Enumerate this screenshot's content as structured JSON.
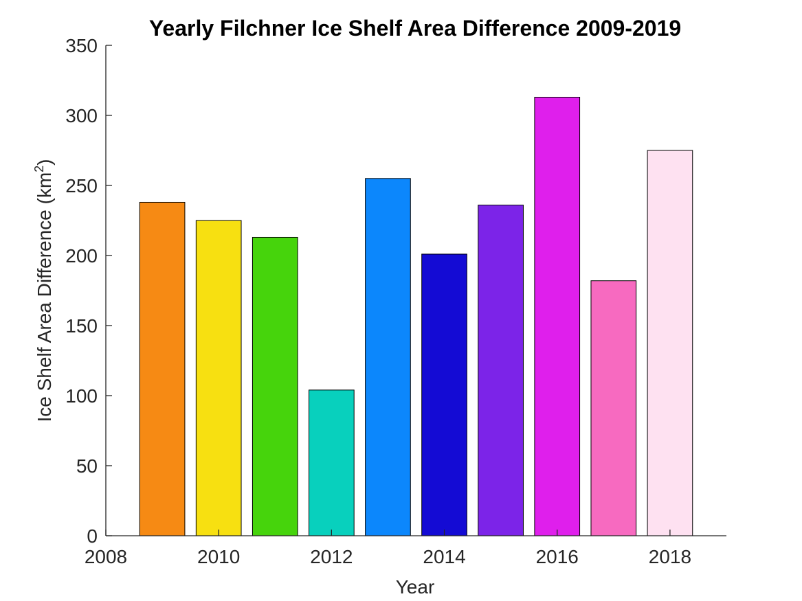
{
  "chart_data": {
    "type": "bar",
    "title": "Yearly Filchner Ice Shelf Area Difference 2009-2019",
    "xlabel": "Year",
    "ylabel_main": "Ice Shelf Area Difference (km",
    "ylabel_sup": "2",
    "ylabel_end": ")",
    "x": [
      2009,
      2010,
      2011,
      2012,
      2013,
      2014,
      2015,
      2016,
      2017,
      2018
    ],
    "values": [
      238,
      225,
      213,
      104,
      255,
      201,
      236,
      313,
      182,
      275
    ],
    "colors": [
      "#f68a14",
      "#f7e011",
      "#46d40c",
      "#08d0bd",
      "#0c87fc",
      "#140bd4",
      "#7c24e8",
      "#df1fec",
      "#f76ac0",
      "#fee1f1"
    ],
    "xlim": [
      2008,
      2019
    ],
    "ylim": [
      0,
      350
    ],
    "xticks": [
      2008,
      2010,
      2012,
      2014,
      2016,
      2018
    ],
    "yticks": [
      0,
      50,
      100,
      150,
      200,
      250,
      300,
      350
    ],
    "grid": false
  }
}
